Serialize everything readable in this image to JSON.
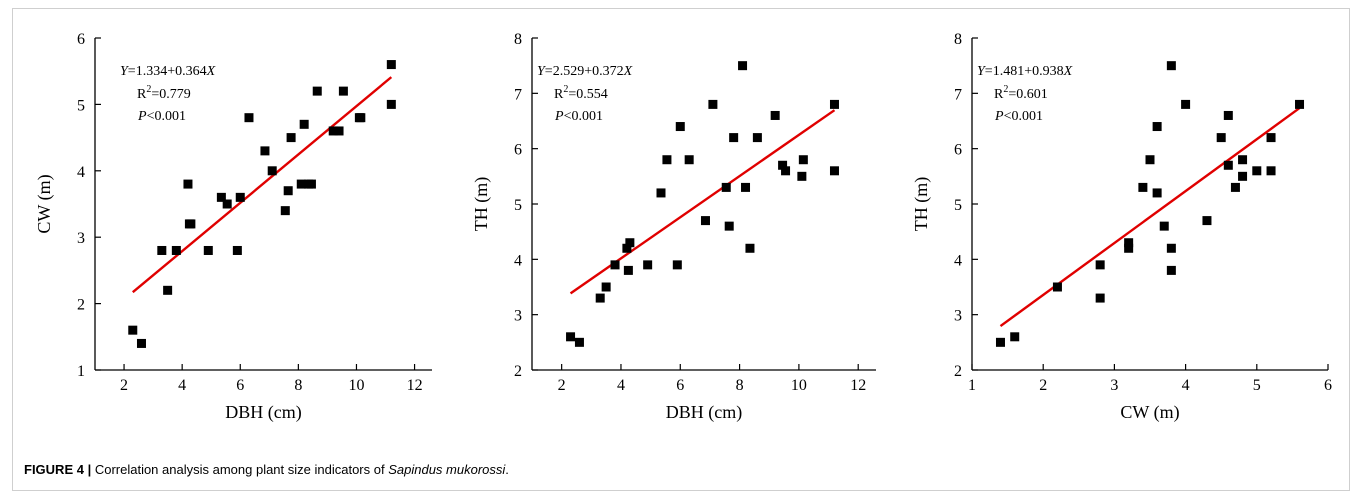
{
  "caption": {
    "label": "FIGURE 4 |",
    "text": "Correlation analysis among plant size indicators of",
    "species": "Sapindus mukorossi",
    "end": "."
  },
  "chart_data": [
    {
      "type": "scatter",
      "xlabel": "DBH (cm)",
      "ylabel": "CW (m)",
      "xlim": [
        1,
        12.6
      ],
      "ylim": [
        1,
        6
      ],
      "xticks": [
        2,
        4,
        6,
        8,
        10,
        12
      ],
      "yticks": [
        1,
        2,
        3,
        4,
        5,
        6
      ],
      "equation": {
        "y": "Y",
        "body": "=1.334+0.364",
        "x": "X"
      },
      "r2": {
        "base": "R",
        "exp": "2",
        "value": "=0.779"
      },
      "p": {
        "sym": "P",
        "value": "<0.001"
      },
      "fit": {
        "intercept": 1.334,
        "slope": 0.364,
        "x_range": [
          2.3,
          11.2
        ]
      },
      "points": [
        [
          2.3,
          1.6
        ],
        [
          2.6,
          1.4
        ],
        [
          3.3,
          2.8
        ],
        [
          3.5,
          2.2
        ],
        [
          3.8,
          2.8
        ],
        [
          4.2,
          3.8
        ],
        [
          4.25,
          3.2
        ],
        [
          4.3,
          3.2
        ],
        [
          4.9,
          2.8
        ],
        [
          5.35,
          3.6
        ],
        [
          5.55,
          3.5
        ],
        [
          5.9,
          2.8
        ],
        [
          6.0,
          3.6
        ],
        [
          6.3,
          4.8
        ],
        [
          6.85,
          4.3
        ],
        [
          7.1,
          4.0
        ],
        [
          7.55,
          3.4
        ],
        [
          7.65,
          3.7
        ],
        [
          7.75,
          4.5
        ],
        [
          8.1,
          3.8
        ],
        [
          8.2,
          4.7
        ],
        [
          8.35,
          3.8
        ],
        [
          8.45,
          3.8
        ],
        [
          8.65,
          5.2
        ],
        [
          9.2,
          4.6
        ],
        [
          9.4,
          4.6
        ],
        [
          9.55,
          5.2
        ],
        [
          10.1,
          4.8
        ],
        [
          10.15,
          4.8
        ],
        [
          11.2,
          5.6
        ],
        [
          11.2,
          5.0
        ]
      ]
    },
    {
      "type": "scatter",
      "xlabel": "DBH (cm)",
      "ylabel": "TH (m)",
      "xlim": [
        1,
        12.6
      ],
      "ylim": [
        2,
        8
      ],
      "xticks": [
        2,
        4,
        6,
        8,
        10,
        12
      ],
      "yticks": [
        2,
        3,
        4,
        5,
        6,
        7,
        8
      ],
      "equation": {
        "y": "Y",
        "body": "=2.529+0.372",
        "x": "X"
      },
      "r2": {
        "base": "R",
        "exp": "2",
        "value": "=0.554"
      },
      "p": {
        "sym": "P",
        "value": "<0.001"
      },
      "fit": {
        "intercept": 2.529,
        "slope": 0.372,
        "x_range": [
          2.3,
          11.2
        ]
      },
      "points": [
        [
          2.3,
          2.6
        ],
        [
          2.6,
          2.5
        ],
        [
          3.3,
          3.3
        ],
        [
          3.5,
          3.5
        ],
        [
          3.8,
          3.9
        ],
        [
          4.2,
          4.2
        ],
        [
          4.25,
          3.8
        ],
        [
          4.3,
          4.3
        ],
        [
          4.9,
          3.9
        ],
        [
          5.35,
          5.2
        ],
        [
          5.55,
          5.8
        ],
        [
          5.9,
          3.9
        ],
        [
          6.0,
          6.4
        ],
        [
          6.3,
          5.8
        ],
        [
          6.85,
          4.7
        ],
        [
          7.1,
          6.8
        ],
        [
          7.55,
          5.3
        ],
        [
          7.65,
          4.6
        ],
        [
          7.8,
          6.2
        ],
        [
          8.1,
          7.5
        ],
        [
          8.2,
          5.3
        ],
        [
          8.35,
          4.2
        ],
        [
          8.6,
          6.2
        ],
        [
          9.2,
          6.6
        ],
        [
          9.45,
          5.7
        ],
        [
          9.55,
          5.6
        ],
        [
          10.1,
          5.5
        ],
        [
          10.15,
          5.8
        ],
        [
          11.2,
          6.8
        ],
        [
          11.2,
          5.6
        ]
      ]
    },
    {
      "type": "scatter",
      "xlabel": "CW (m)",
      "ylabel": "TH (m)",
      "xlim": [
        1,
        6
      ],
      "ylim": [
        2,
        8
      ],
      "xticks": [
        1,
        2,
        3,
        4,
        5,
        6
      ],
      "yticks": [
        2,
        3,
        4,
        5,
        6,
        7,
        8
      ],
      "equation": {
        "y": "Y",
        "body": "=1.481+0.938",
        "x": "X"
      },
      "r2": {
        "base": "R",
        "exp": "2",
        "value": "=0.601"
      },
      "p": {
        "sym": "P",
        "value": "<0.001"
      },
      "fit": {
        "intercept": 1.481,
        "slope": 0.938,
        "x_range": [
          1.4,
          5.6
        ]
      },
      "points": [
        [
          1.4,
          2.5
        ],
        [
          1.6,
          2.6
        ],
        [
          2.2,
          3.5
        ],
        [
          2.8,
          3.9
        ],
        [
          2.8,
          3.3
        ],
        [
          3.2,
          4.3
        ],
        [
          3.2,
          4.2
        ],
        [
          3.4,
          5.3
        ],
        [
          3.5,
          5.8
        ],
        [
          3.6,
          6.4
        ],
        [
          3.6,
          5.2
        ],
        [
          3.7,
          4.6
        ],
        [
          3.8,
          7.5
        ],
        [
          3.8,
          4.2
        ],
        [
          3.8,
          3.8
        ],
        [
          4.0,
          6.8
        ],
        [
          4.3,
          4.7
        ],
        [
          4.5,
          6.2
        ],
        [
          4.6,
          6.6
        ],
        [
          4.6,
          5.7
        ],
        [
          4.7,
          5.3
        ],
        [
          4.8,
          5.8
        ],
        [
          4.8,
          5.5
        ],
        [
          5.0,
          5.6
        ],
        [
          5.2,
          6.2
        ],
        [
          5.2,
          5.6
        ],
        [
          5.6,
          6.8
        ]
      ]
    }
  ]
}
